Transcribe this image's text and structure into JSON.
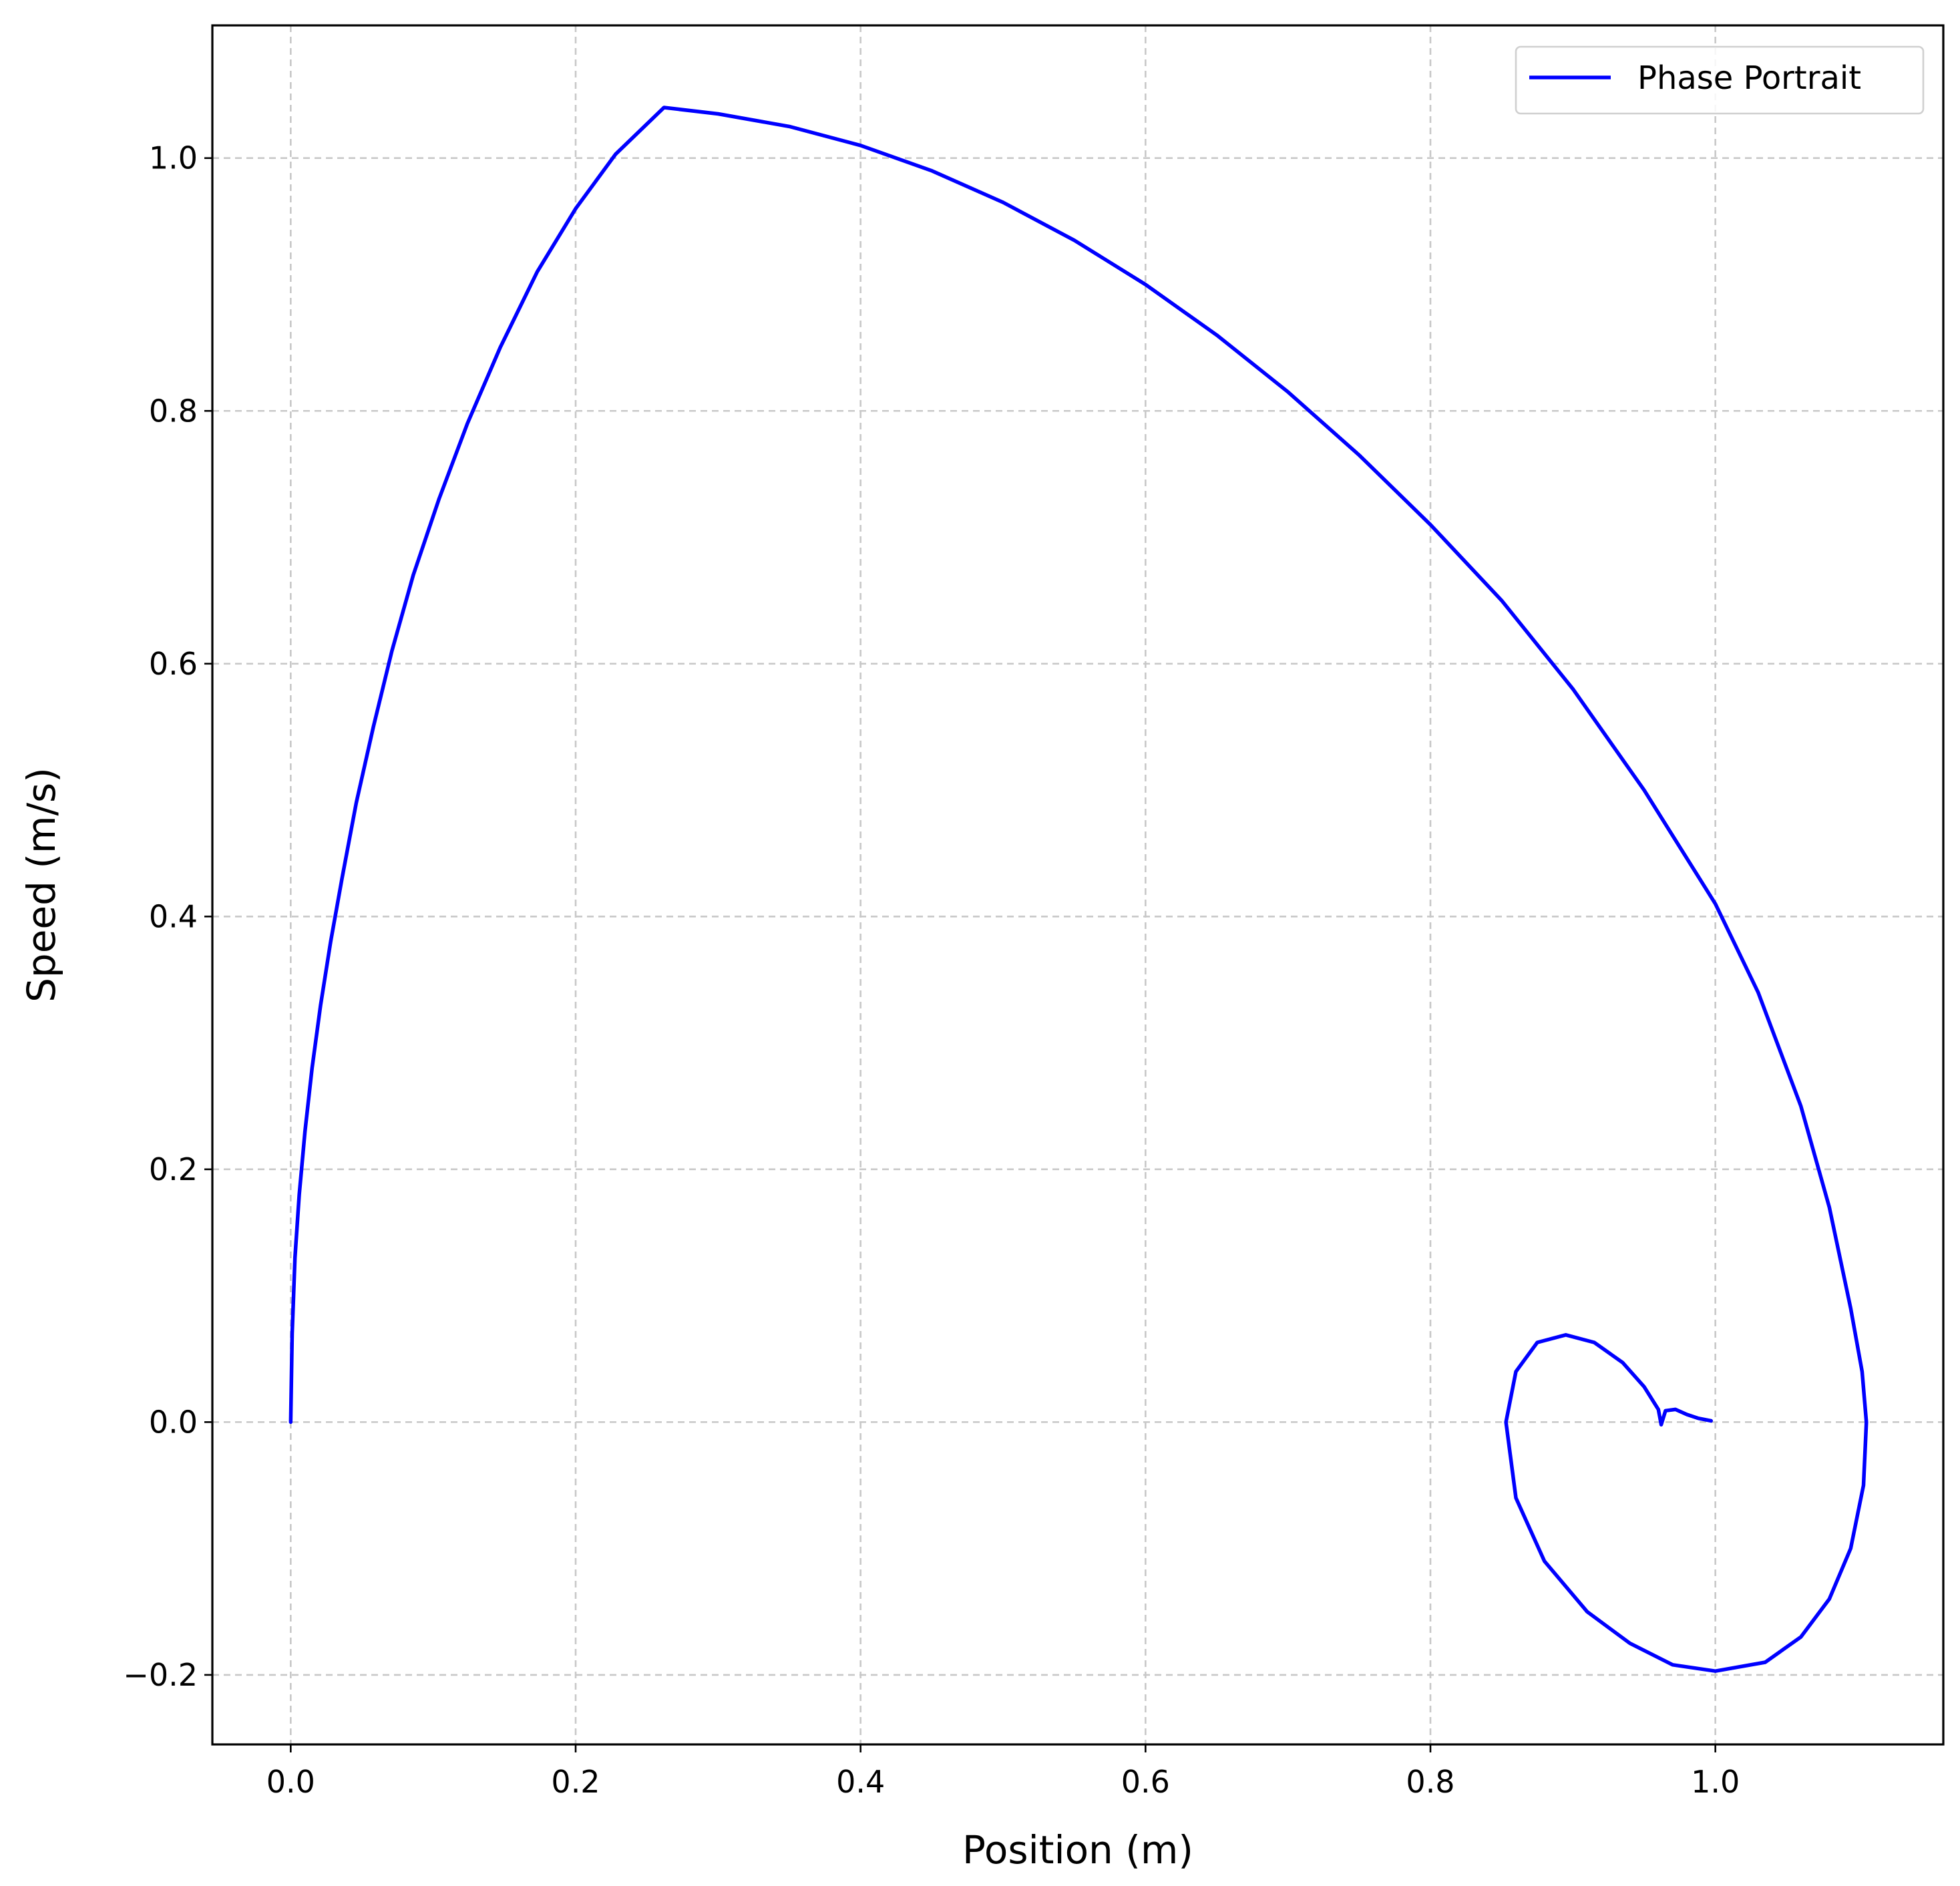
{
  "chart_data": {
    "type": "line",
    "title": "",
    "xlabel": "Position (m)",
    "ylabel": "Speed (m/s)",
    "xlim": [
      -0.055,
      1.16
    ],
    "ylim": [
      -0.255,
      1.105
    ],
    "xticks": [
      0.0,
      0.2,
      0.4,
      0.6,
      0.8,
      1.0
    ],
    "xtick_labels": [
      "0.0",
      "0.2",
      "0.4",
      "0.6",
      "0.8",
      "1.0"
    ],
    "yticks": [
      -0.2,
      0.0,
      0.2,
      0.4,
      0.6,
      0.8,
      1.0
    ],
    "ytick_labels": [
      "−0.2",
      "0.0",
      "0.2",
      "0.4",
      "0.6",
      "0.8",
      "1.0"
    ],
    "grid": true,
    "legend_position": "top-right",
    "series": [
      {
        "name": "Phase Portrait",
        "color": "#0000ff",
        "points": [
          [
            0.0,
            0.0
          ],
          [
            0.001,
            0.07
          ],
          [
            0.003,
            0.13
          ],
          [
            0.006,
            0.18
          ],
          [
            0.01,
            0.23
          ],
          [
            0.015,
            0.28
          ],
          [
            0.021,
            0.33
          ],
          [
            0.028,
            0.38
          ],
          [
            0.036,
            0.43
          ],
          [
            0.046,
            0.49
          ],
          [
            0.058,
            0.55
          ],
          [
            0.071,
            0.61
          ],
          [
            0.086,
            0.67
          ],
          [
            0.104,
            0.73
          ],
          [
            0.124,
            0.79
          ],
          [
            0.147,
            0.85
          ],
          [
            0.173,
            0.91
          ],
          [
            0.2,
            0.96
          ],
          [
            0.228,
            1.003
          ],
          [
            0.262,
            1.04
          ],
          [
            0.3,
            1.035
          ],
          [
            0.35,
            1.025
          ],
          [
            0.4,
            1.01
          ],
          [
            0.45,
            0.99
          ],
          [
            0.5,
            0.965
          ],
          [
            0.55,
            0.935
          ],
          [
            0.6,
            0.9
          ],
          [
            0.65,
            0.86
          ],
          [
            0.7,
            0.815
          ],
          [
            0.75,
            0.765
          ],
          [
            0.8,
            0.71
          ],
          [
            0.85,
            0.65
          ],
          [
            0.9,
            0.58
          ],
          [
            0.95,
            0.5
          ],
          [
            1.0,
            0.41
          ],
          [
            1.03,
            0.34
          ],
          [
            1.06,
            0.25
          ],
          [
            1.08,
            0.17
          ],
          [
            1.095,
            0.09
          ],
          [
            1.103,
            0.04
          ],
          [
            1.106,
            0.0
          ],
          [
            1.104,
            -0.05
          ],
          [
            1.095,
            -0.1
          ],
          [
            1.08,
            -0.14
          ],
          [
            1.06,
            -0.17
          ],
          [
            1.035,
            -0.19
          ],
          [
            1.0,
            -0.197
          ],
          [
            0.97,
            -0.192
          ],
          [
            0.94,
            -0.175
          ],
          [
            0.91,
            -0.15
          ],
          [
            0.88,
            -0.11
          ],
          [
            0.86,
            -0.06
          ],
          [
            0.853,
            0.0
          ],
          [
            0.86,
            0.04
          ],
          [
            0.875,
            0.063
          ],
          [
            0.895,
            0.069
          ],
          [
            0.915,
            0.063
          ],
          [
            0.935,
            0.047
          ],
          [
            0.95,
            0.028
          ],
          [
            0.96,
            0.01
          ],
          [
            0.962,
            -0.002
          ],
          [
            0.965,
            0.009
          ],
          [
            0.972,
            0.01
          ],
          [
            0.98,
            0.006
          ],
          [
            0.988,
            0.003
          ],
          [
            0.997,
            0.001
          ]
        ]
      }
    ]
  }
}
